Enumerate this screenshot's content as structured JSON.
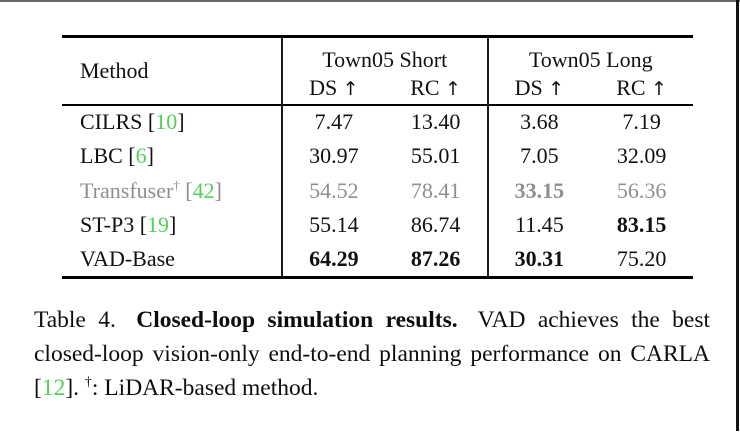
{
  "colors": {
    "citation-green": "#55d055",
    "muted-gray": "#8f8f8f"
  },
  "table": {
    "method_header": "Method",
    "groups": [
      {
        "label": "Town05 Short"
      },
      {
        "label": "Town05 Long"
      }
    ],
    "sub_headers": [
      "DS",
      "RC",
      "DS",
      "RC"
    ],
    "up_arrow": "↑",
    "rows": [
      {
        "method": "CILRS",
        "sup": "",
        "cite_open": " [",
        "cite": "10",
        "cite_close": "]",
        "values": [
          "7.47",
          "13.40",
          "3.68",
          "7.19"
        ]
      },
      {
        "method": "LBC",
        "sup": "",
        "cite_open": " [",
        "cite": "6",
        "cite_close": "]",
        "values": [
          "30.97",
          "55.01",
          "7.05",
          "32.09"
        ]
      },
      {
        "method": "Transfuser",
        "sup": "†",
        "cite_open": " [",
        "cite": "42",
        "cite_close": "]",
        "values": [
          "54.52",
          "78.41",
          "33.15",
          "56.36"
        ]
      },
      {
        "method": "ST-P3",
        "sup": "",
        "cite_open": " [",
        "cite": "19",
        "cite_close": "]",
        "values": [
          "55.14",
          "86.74",
          "11.45",
          "83.15"
        ]
      },
      {
        "method": "VAD-Base",
        "sup": "",
        "cite_open": "",
        "cite": "",
        "cite_close": "",
        "values": [
          "64.29",
          "87.26",
          "30.31",
          "75.20"
        ]
      }
    ]
  },
  "caption": {
    "label": "Table 4.",
    "title_bold": "Closed-loop simulation results.",
    "body_1": "VAD achieves the best closed-loop vision-only end-to-end planning performance on CARLA [",
    "cite": "12",
    "body_2": "].",
    "dagger": "†",
    "body_3": ": LiDAR-based method."
  }
}
